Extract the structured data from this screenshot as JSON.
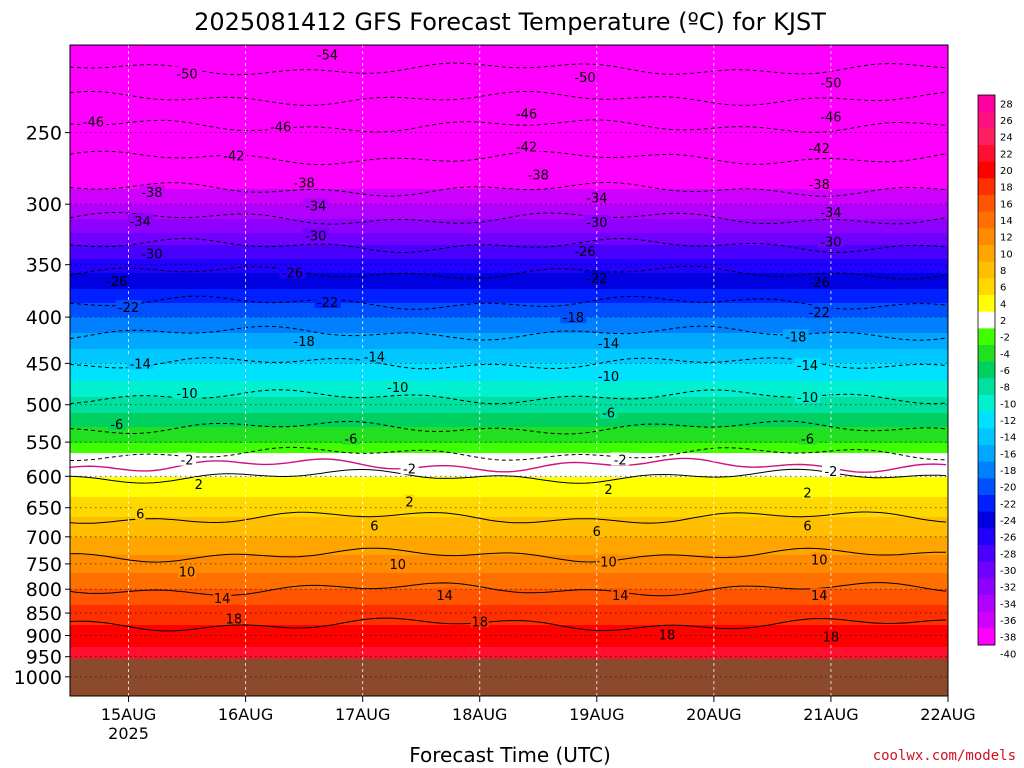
{
  "credit": "coolwx.com/models",
  "chart_data": {
    "type": "heatmap",
    "title": "2025081412 GFS Forecast Temperature (ºC) for KJST",
    "xlabel": "Forecast Time (UTC)",
    "ylabel": "",
    "x_ticks": [
      "15AUG",
      "16AUG",
      "17AUG",
      "18AUG",
      "19AUG",
      "20AUG",
      "21AUG",
      "22AUG"
    ],
    "x_tick_year": "2025",
    "xlim_days": [
      14.5,
      22.0
    ],
    "y_axis": "pressure (inverted, log)",
    "y_ticks": [
      250,
      300,
      350,
      400,
      450,
      500,
      550,
      600,
      650,
      700,
      750,
      800,
      850,
      900,
      950,
      1000
    ],
    "ylim": [
      200,
      1050
    ],
    "ground_level": 955,
    "grid": true,
    "contour_interval": 4,
    "freezing_contour_color": "#d01080",
    "ground_color": "#8b4a2b",
    "colorbar_labels": [
      28,
      26,
      24,
      22,
      20,
      18,
      16,
      14,
      12,
      10,
      8,
      6,
      4,
      2,
      -2,
      -4,
      -6,
      -8,
      -10,
      -12,
      -14,
      -16,
      -18,
      -20,
      -22,
      -24,
      -26,
      -28,
      -30,
      -32,
      -34,
      -36,
      -38,
      -40
    ],
    "colorbar_colors": [
      "#ff00a0",
      "#ff1080",
      "#ff2060",
      "#ff1030",
      "#ff0000",
      "#ff3000",
      "#ff5500",
      "#ff7000",
      "#ff8c00",
      "#ffa500",
      "#ffbe00",
      "#ffd800",
      "#ffff00",
      "#ffffff",
      "#40ff00",
      "#20e020",
      "#00d060",
      "#00e0a0",
      "#00f0d0",
      "#00e0ff",
      "#00c8ff",
      "#00a8ff",
      "#0080ff",
      "#0050ff",
      "#0020ff",
      "#0000e0",
      "#2000ff",
      "#4a00ff",
      "#7000ff",
      "#9000ff",
      "#b000ff",
      "#d000ff",
      "#ff00ff"
    ],
    "profile": [
      {
        "p": 200,
        "t": -57
      },
      {
        "p": 250,
        "t": -45
      },
      {
        "p": 300,
        "t": -36
      },
      {
        "p": 350,
        "t": -27
      },
      {
        "p": 400,
        "t": -20
      },
      {
        "p": 450,
        "t": -14
      },
      {
        "p": 500,
        "t": -9
      },
      {
        "p": 550,
        "t": -4
      },
      {
        "p": 600,
        "t": 2
      },
      {
        "p": 650,
        "t": 5
      },
      {
        "p": 700,
        "t": 8
      },
      {
        "p": 750,
        "t": 11
      },
      {
        "p": 800,
        "t": 14
      },
      {
        "p": 850,
        "t": 17
      },
      {
        "p": 900,
        "t": 19
      },
      {
        "p": 950,
        "t": 21
      }
    ],
    "contour_labels": [
      {
        "v": "-54",
        "x": 16.7,
        "p": 205
      },
      {
        "v": "-50",
        "x": 15.5,
        "p": 215
      },
      {
        "v": "-50",
        "x": 18.9,
        "p": 217
      },
      {
        "v": "-50",
        "x": 21.0,
        "p": 220
      },
      {
        "v": "-46",
        "x": 14.7,
        "p": 243
      },
      {
        "v": "-46",
        "x": 16.3,
        "p": 246
      },
      {
        "v": "-46",
        "x": 18.4,
        "p": 238
      },
      {
        "v": "-46",
        "x": 21.0,
        "p": 240
      },
      {
        "v": "-42",
        "x": 15.9,
        "p": 265
      },
      {
        "v": "-42",
        "x": 18.4,
        "p": 259
      },
      {
        "v": "-42",
        "x": 20.9,
        "p": 260
      },
      {
        "v": "-38",
        "x": 15.2,
        "p": 291
      },
      {
        "v": "-38",
        "x": 16.5,
        "p": 284
      },
      {
        "v": "-38",
        "x": 18.5,
        "p": 278
      },
      {
        "v": "-38",
        "x": 20.9,
        "p": 285
      },
      {
        "v": "-34",
        "x": 15.1,
        "p": 313
      },
      {
        "v": "-34",
        "x": 16.6,
        "p": 301
      },
      {
        "v": "-34",
        "x": 19.0,
        "p": 295
      },
      {
        "v": "-34",
        "x": 21.0,
        "p": 306
      },
      {
        "v": "-30",
        "x": 15.2,
        "p": 340
      },
      {
        "v": "-30",
        "x": 16.6,
        "p": 325
      },
      {
        "v": "-30",
        "x": 19.0,
        "p": 314
      },
      {
        "v": "-30",
        "x": 21.0,
        "p": 330
      },
      {
        "v": "-26",
        "x": 14.9,
        "p": 365
      },
      {
        "v": "-26",
        "x": 16.4,
        "p": 357
      },
      {
        "v": "-26",
        "x": 18.9,
        "p": 338
      },
      {
        "v": "-26",
        "x": 20.9,
        "p": 366
      },
      {
        "v": "-22",
        "x": 15.0,
        "p": 390
      },
      {
        "v": "-22",
        "x": 16.7,
        "p": 385
      },
      {
        "v": "-22",
        "x": 19.0,
        "p": 362
      },
      {
        "v": "-22",
        "x": 20.9,
        "p": 395
      },
      {
        "v": "-18",
        "x": 16.5,
        "p": 425
      },
      {
        "v": "-18",
        "x": 18.8,
        "p": 400
      },
      {
        "v": "-18",
        "x": 20.7,
        "p": 420
      },
      {
        "v": "-14",
        "x": 15.1,
        "p": 450
      },
      {
        "v": "-14",
        "x": 17.1,
        "p": 442
      },
      {
        "v": "-14",
        "x": 19.1,
        "p": 427
      },
      {
        "v": "-14",
        "x": 20.8,
        "p": 452
      },
      {
        "v": "-10",
        "x": 15.5,
        "p": 485
      },
      {
        "v": "-10",
        "x": 17.3,
        "p": 478
      },
      {
        "v": "-10",
        "x": 19.1,
        "p": 465
      },
      {
        "v": "-10",
        "x": 20.8,
        "p": 490
      },
      {
        "v": "-6",
        "x": 14.9,
        "p": 525
      },
      {
        "v": "-6",
        "x": 16.9,
        "p": 545
      },
      {
        "v": "-6",
        "x": 19.1,
        "p": 510
      },
      {
        "v": "-6",
        "x": 20.8,
        "p": 545
      },
      {
        "v": "-2",
        "x": 15.5,
        "p": 575
      },
      {
        "v": "-2",
        "x": 17.4,
        "p": 588
      },
      {
        "v": "-2",
        "x": 19.2,
        "p": 575
      },
      {
        "v": "-2",
        "x": 21.0,
        "p": 592
      },
      {
        "v": "2",
        "x": 15.6,
        "p": 612
      },
      {
        "v": "2",
        "x": 17.4,
        "p": 640
      },
      {
        "v": "2",
        "x": 19.1,
        "p": 620
      },
      {
        "v": "2",
        "x": 20.8,
        "p": 625
      },
      {
        "v": "6",
        "x": 15.1,
        "p": 660
      },
      {
        "v": "6",
        "x": 17.1,
        "p": 680
      },
      {
        "v": "6",
        "x": 19.0,
        "p": 690
      },
      {
        "v": "6",
        "x": 20.8,
        "p": 680
      },
      {
        "v": "10",
        "x": 15.5,
        "p": 765
      },
      {
        "v": "10",
        "x": 17.3,
        "p": 750
      },
      {
        "v": "10",
        "x": 19.1,
        "p": 745
      },
      {
        "v": "10",
        "x": 20.9,
        "p": 742
      },
      {
        "v": "14",
        "x": 15.8,
        "p": 818
      },
      {
        "v": "14",
        "x": 17.7,
        "p": 812
      },
      {
        "v": "14",
        "x": 19.2,
        "p": 812
      },
      {
        "v": "14",
        "x": 20.9,
        "p": 812
      },
      {
        "v": "18",
        "x": 15.9,
        "p": 862
      },
      {
        "v": "18",
        "x": 18.0,
        "p": 868
      },
      {
        "v": "18",
        "x": 19.6,
        "p": 898
      },
      {
        "v": "18",
        "x": 21.0,
        "p": 902
      }
    ]
  }
}
